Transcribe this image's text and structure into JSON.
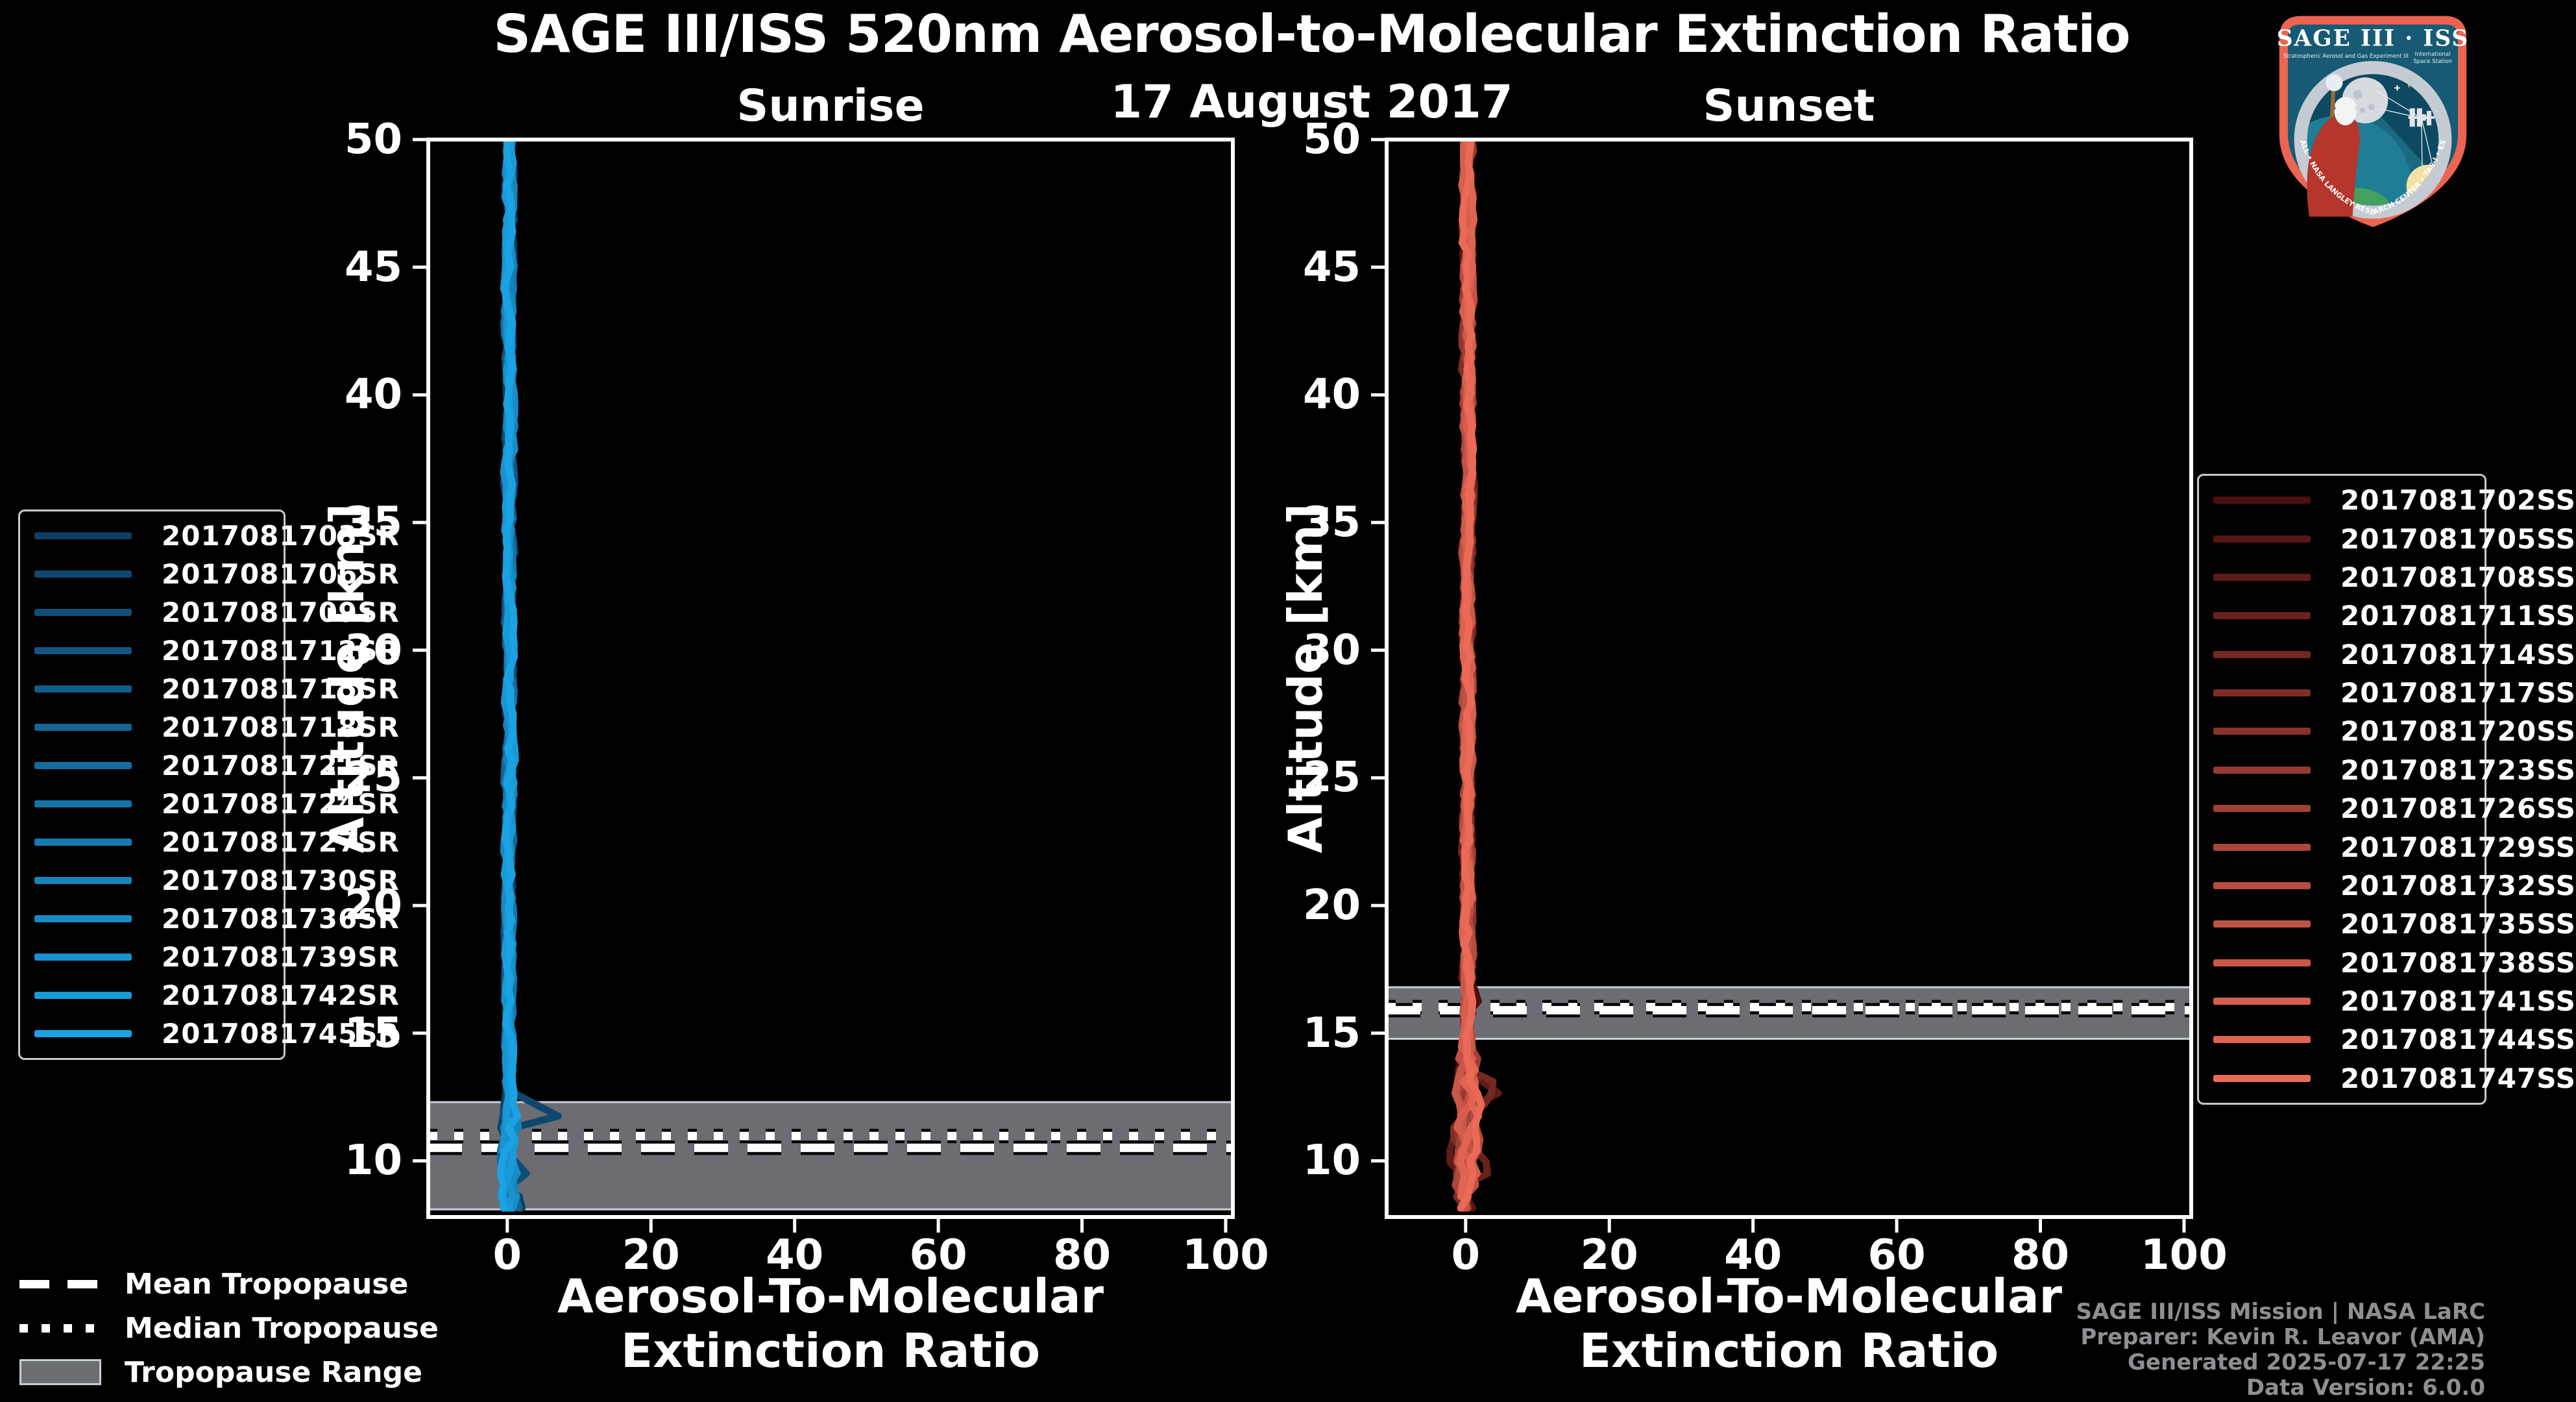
{
  "title": "SAGE III/ISS 520nm Aerosol-to-Molecular Extinction Ratio",
  "subtitle": "17 August 2017",
  "logo": {
    "title": "SAGE III · ISS",
    "tagline_left": "Stratospheric Aerosol and Gas Experiment III",
    "tagline_right_line1": "International",
    "tagline_right_line2": "Space Station",
    "rim_text": "BALL • NASA LANGLEY RESEARCH CENTER • TAS-I • ESA"
  },
  "footer": {
    "lines": [
      "SAGE III/ISS Mission | NASA LaRC",
      "Preparer: Kevin R. Leavor (AMA)",
      "Generated 2025-07-17 22:25",
      "Data Version: 6.0.0"
    ]
  },
  "tropopause_legend": [
    {
      "label": "Mean Tropopause",
      "style": "dashed"
    },
    {
      "label": "Median Tropopause",
      "style": "dotted"
    },
    {
      "label": "Tropopause Range",
      "style": "band"
    }
  ],
  "colors": {
    "background": "#000000",
    "axis": "#ffffff",
    "tropopause_band": "#6b6d72",
    "tropopause_band_edge": "#c9ced4",
    "footer_text": "#8e8f92"
  },
  "chart_data": [
    {
      "type": "line",
      "panel": "Sunrise",
      "title": "Sunrise",
      "xlabel": "Aerosol-To-Molecular Extinction Ratio",
      "ylabel": "Altitude [km]",
      "xlim": [
        -11,
        101
      ],
      "ylim": [
        7.8,
        50
      ],
      "xticks": [
        0,
        20,
        40,
        60,
        80,
        100
      ],
      "yticks": [
        10,
        15,
        20,
        25,
        30,
        35,
        40,
        45,
        50
      ],
      "grid": false,
      "legend_position": "outside-left",
      "tropopause": {
        "mean_km": 10.51,
        "median_km": 10.97,
        "range_km": [
          8.1,
          12.3
        ]
      },
      "profile": {
        "x_center": 0.3,
        "alt_top": 50,
        "alt_bottom": 7.85,
        "bottom_spread": 0.3,
        "step": 0.45,
        "jitter": 1.0,
        "jitter_boost": {
          "below_km": 12,
          "factor": 1.8
        },
        "seed": 20170817
      },
      "excursions": [
        {
          "series": 1,
          "alt": 11.85,
          "peak": 6.6,
          "width": 0.42
        },
        {
          "series": 2,
          "alt": 9.55,
          "peak": 2.6,
          "width": 0.5
        },
        {
          "series": 0,
          "alt": 8.25,
          "peak": 2.6,
          "width": 0.45
        },
        {
          "series": 3,
          "alt": 10.15,
          "peak": -1.2,
          "width": 0.4
        }
      ],
      "series": [
        {
          "name": "2017081703SR",
          "color": "#0d3f63"
        },
        {
          "name": "2017081706SR",
          "color": "#0e476d"
        },
        {
          "name": "2017081709SR",
          "color": "#0f4e77"
        },
        {
          "name": "2017081712SR",
          "color": "#105680"
        },
        {
          "name": "2017081715SR",
          "color": "#115d8a"
        },
        {
          "name": "2017081718SR",
          "color": "#126594"
        },
        {
          "name": "2017081721SR",
          "color": "#136d9e"
        },
        {
          "name": "2017081724SR",
          "color": "#1474a7"
        },
        {
          "name": "2017081727SR",
          "color": "#157cb1"
        },
        {
          "name": "2017081730SR",
          "color": "#1684bb"
        },
        {
          "name": "2017081736SR",
          "color": "#178bc5"
        },
        {
          "name": "2017081739SR",
          "color": "#1893ce"
        },
        {
          "name": "2017081742SR",
          "color": "#199ad8"
        },
        {
          "name": "2017081745SR",
          "color": "#1aa2e2"
        }
      ]
    },
    {
      "type": "line",
      "panel": "Sunset",
      "title": "Sunset",
      "xlabel": "Aerosol-To-Molecular Extinction Ratio",
      "ylabel": "Altitude [km]",
      "xlim": [
        -11,
        101
      ],
      "ylim": [
        7.8,
        50
      ],
      "xticks": [
        0,
        20,
        40,
        60,
        80,
        100
      ],
      "yticks": [
        10,
        15,
        20,
        25,
        30,
        35,
        40,
        45,
        50
      ],
      "grid": false,
      "legend_position": "outside-right",
      "tropopause": {
        "mean_km": 15.9,
        "median_km": 16.02,
        "range_km": [
          14.78,
          16.8
        ]
      },
      "profile": {
        "x_center": 0.3,
        "alt_top": 50,
        "alt_bottom": 7.9,
        "bottom_spread": 0.8,
        "step": 0.45,
        "jitter": 1.15,
        "jitter_boost": {
          "below_km": 14,
          "factor": 2.2
        },
        "seed": 20170818
      },
      "excursions": [
        {
          "series": 2,
          "alt": 12.75,
          "peak": 5.2,
          "width": 0.5
        },
        {
          "series": 4,
          "alt": 12.95,
          "peak": 3.0,
          "width": 0.6
        },
        {
          "series": 1,
          "alt": 10.55,
          "peak": 2.6,
          "width": 0.5
        },
        {
          "series": 3,
          "alt": 9.7,
          "peak": 3.6,
          "width": 0.45
        },
        {
          "series": 5,
          "alt": 11.2,
          "peak": -2.0,
          "width": 0.5
        },
        {
          "series": 0,
          "alt": 16.35,
          "peak": 1.6,
          "width": 0.35
        },
        {
          "series": 6,
          "alt": 8.8,
          "peak": -1.6,
          "width": 0.45
        },
        {
          "series": 2,
          "alt": 10.2,
          "peak": -1.8,
          "width": 0.5
        }
      ],
      "series": [
        {
          "name": "2017081702SS",
          "color": "#4a0f0e"
        },
        {
          "name": "2017081705SS",
          "color": "#551513"
        },
        {
          "name": "2017081708SS",
          "color": "#5f1b18"
        },
        {
          "name": "2017081711SS",
          "color": "#6a211d"
        },
        {
          "name": "2017081714SS",
          "color": "#752721"
        },
        {
          "name": "2017081717SS",
          "color": "#7f2d26"
        },
        {
          "name": "2017081720SS",
          "color": "#8a332b"
        },
        {
          "name": "2017081723SS",
          "color": "#953930"
        },
        {
          "name": "2017081726SS",
          "color": "#9f4035"
        },
        {
          "name": "2017081729SS",
          "color": "#aa463a"
        },
        {
          "name": "2017081732SS",
          "color": "#b54c3f"
        },
        {
          "name": "2017081735SS",
          "color": "#bf5244"
        },
        {
          "name": "2017081738SS",
          "color": "#ca5848"
        },
        {
          "name": "2017081741SS",
          "color": "#d55e4d"
        },
        {
          "name": "2017081744SS",
          "color": "#df6452"
        },
        {
          "name": "2017081747SS",
          "color": "#ea6a57"
        }
      ]
    }
  ]
}
